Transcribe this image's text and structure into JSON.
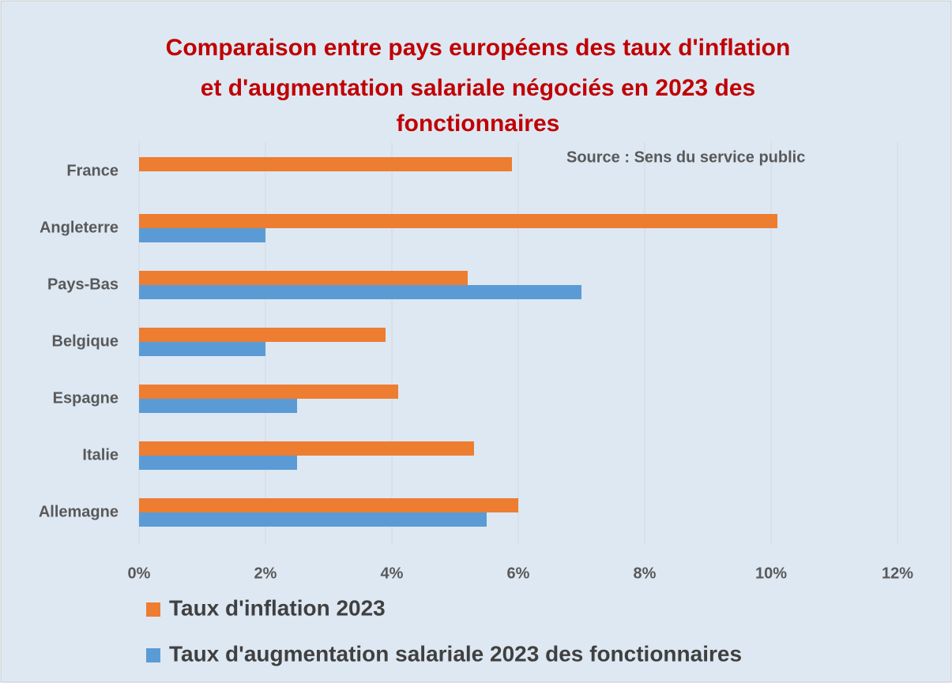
{
  "chart_data": {
    "type": "hbar",
    "title": [
      "Comparaison entre pays européens des taux d'inflation",
      "et d'augmentation salariale négociés en 2023 des",
      "fonctionnaires"
    ],
    "annotation": "Source : Sens du service public",
    "categories": [
      "France",
      "Angleterre",
      "Pays-Bas",
      "Belgique",
      "Espagne",
      "Italie",
      "Allemagne"
    ],
    "series": [
      {
        "name": "Taux d'inflation 2023",
        "color": "#ed7d31",
        "values": [
          5.9,
          10.1,
          5.2,
          3.9,
          4.1,
          5.3,
          6.0
        ]
      },
      {
        "name": "Taux d'augmentation salariale 2023 des fonctionnaires",
        "color": "#5b9bd5",
        "values": [
          null,
          2,
          7,
          2,
          2.5,
          2.5,
          5.5
        ]
      }
    ],
    "xlim": [
      0,
      12
    ],
    "xticks": [
      {
        "value": 0,
        "label": "0%"
      },
      {
        "value": 2,
        "label": "2%"
      },
      {
        "value": 4,
        "label": "4%"
      },
      {
        "value": 6,
        "label": "6%"
      },
      {
        "value": 8,
        "label": "8%"
      },
      {
        "value": 10,
        "label": "10%"
      },
      {
        "value": 12,
        "label": "12%"
      }
    ],
    "grid": true,
    "legend": "bottom"
  }
}
